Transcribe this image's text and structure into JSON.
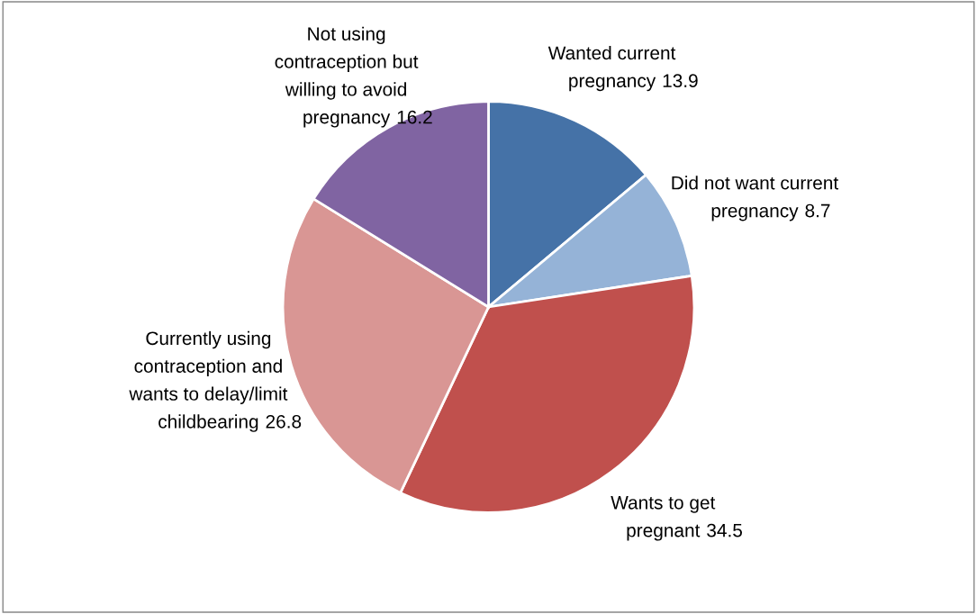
{
  "chart_data": {
    "type": "pie",
    "categories": [
      "Wanted current pregnancy",
      "Did not want current pregnancy",
      "Wants to get pregnant",
      "Currently using contraception and wants to delay/limit childbearing",
      "Not using contraception but willing to avoid pregnancy"
    ],
    "values": [
      13.9,
      8.7,
      34.5,
      26.8,
      16.2
    ],
    "colors": [
      "#4572a7",
      "#95b3d7",
      "#c0504d",
      "#d99694",
      "#8064a2"
    ],
    "data_labels": true,
    "legend": false
  }
}
